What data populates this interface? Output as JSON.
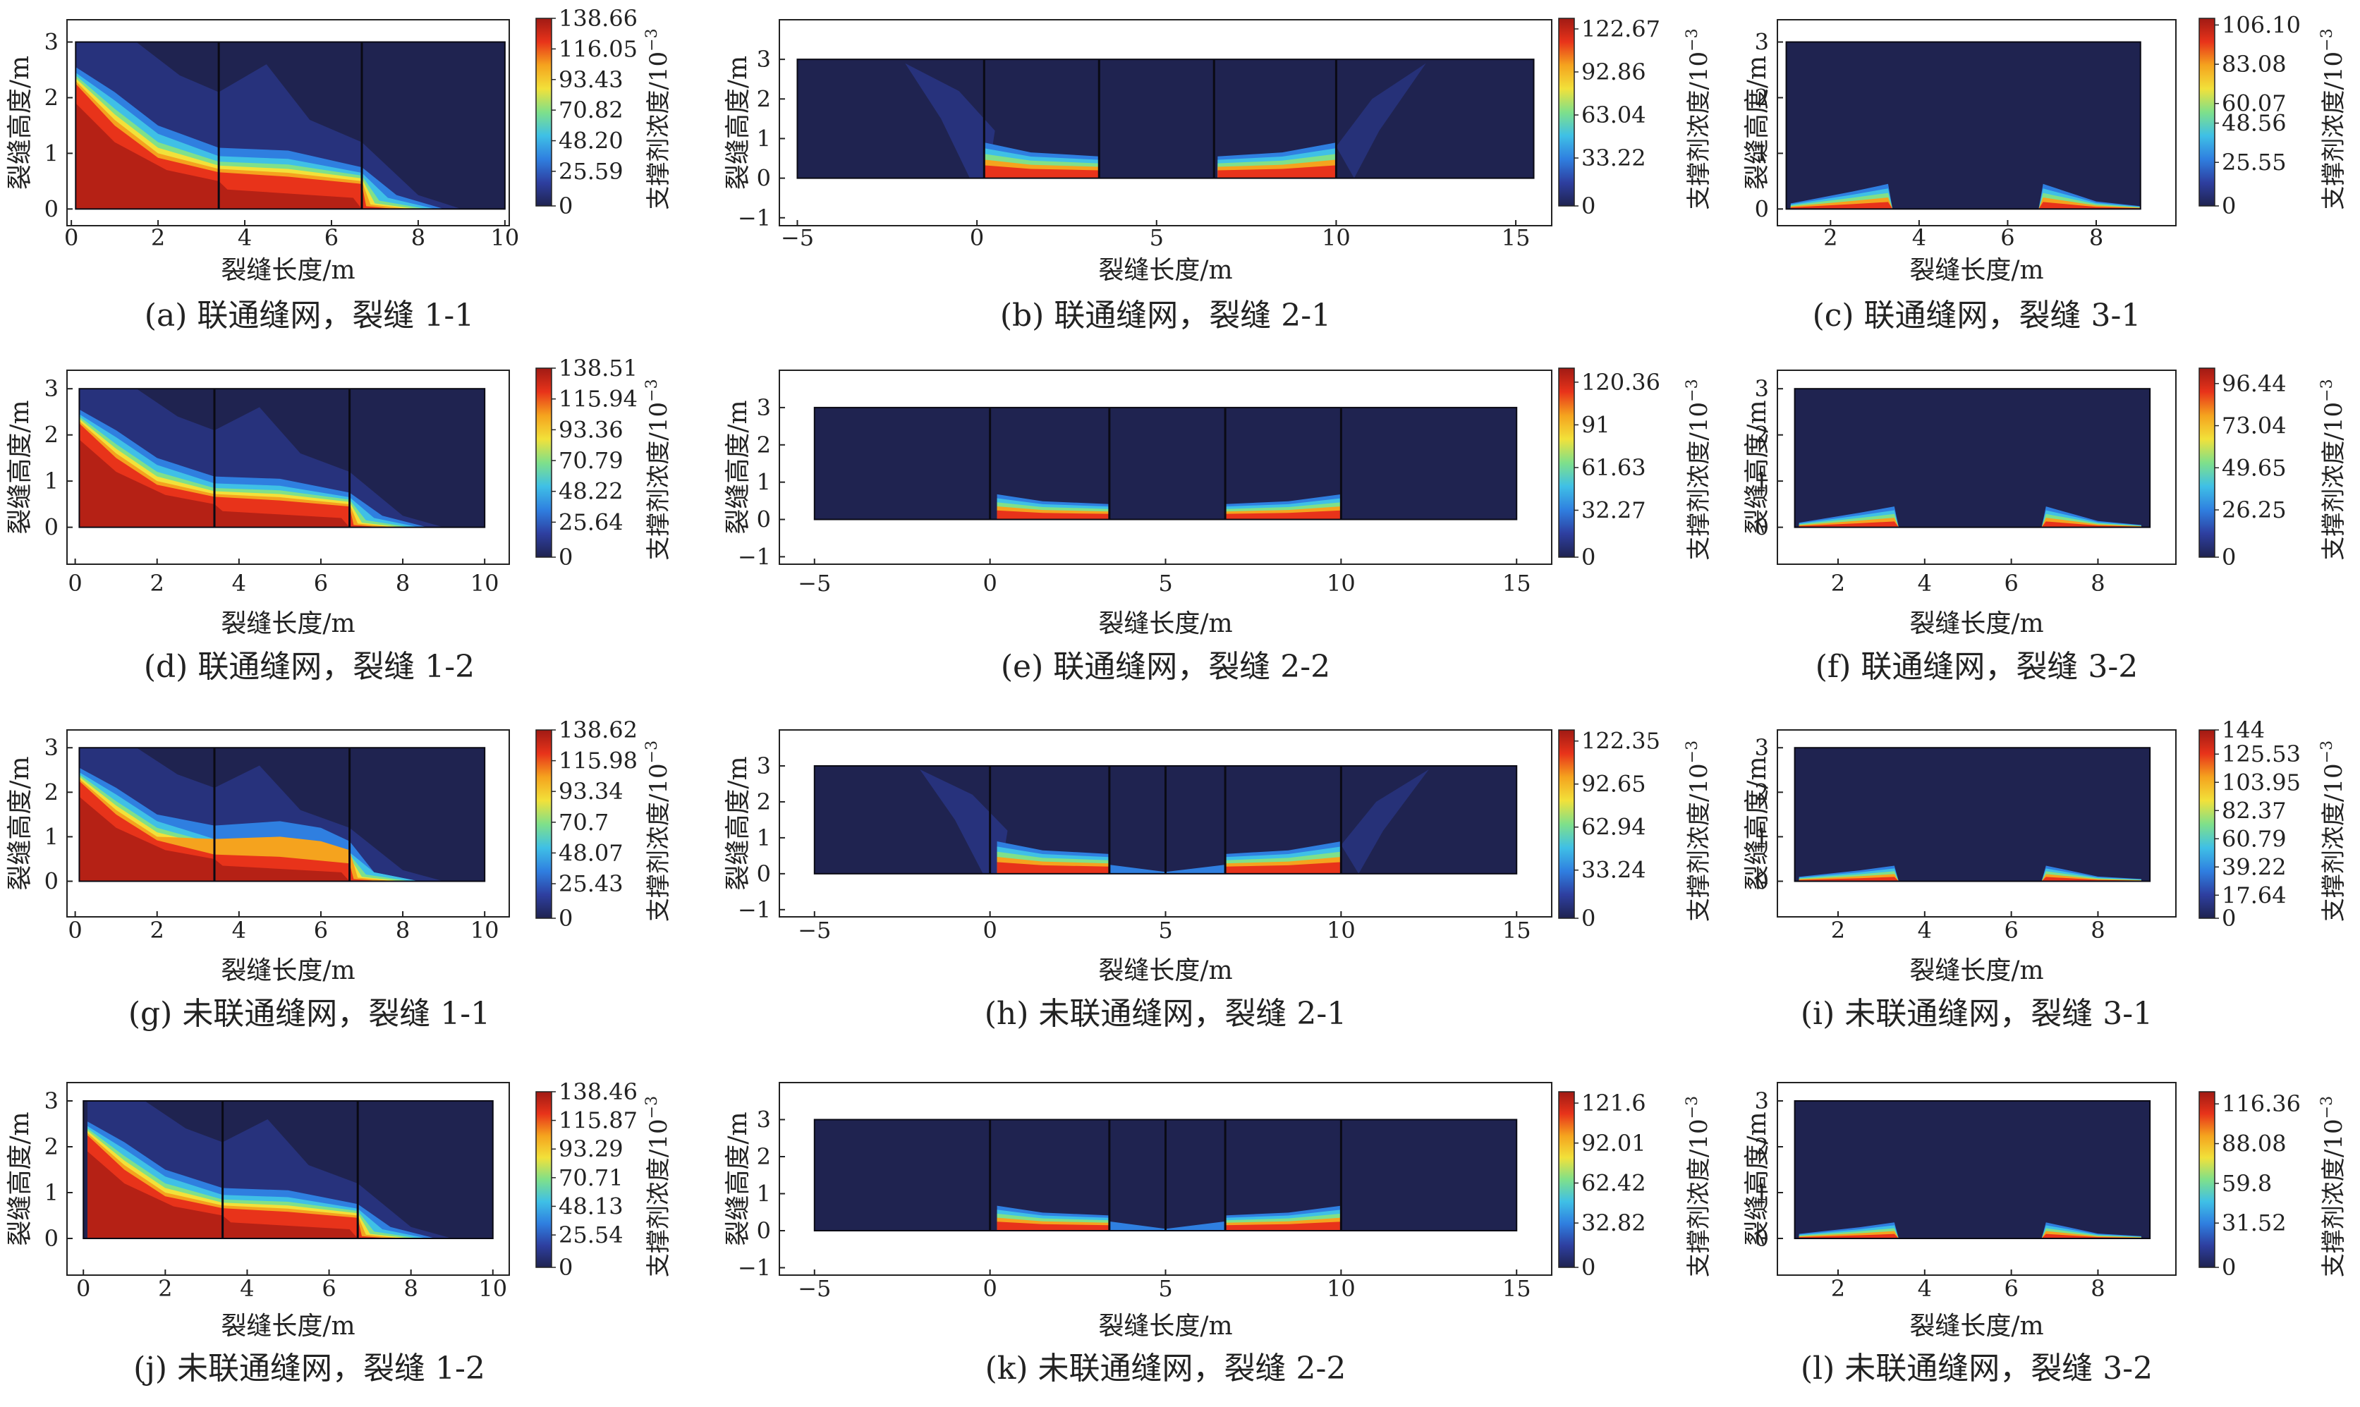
{
  "figure": {
    "xlabel": "裂缝长度/m",
    "ylabel": "裂缝高度/m",
    "colorbar_label": "支撑剂浓度/10",
    "colorbar_exp": "−3",
    "colors": {
      "background": "#1f2350",
      "colormap": [
        "#1f2350",
        "#2e3fa0",
        "#2f7fe0",
        "#3fc0e6",
        "#7fe08a",
        "#f2e13a",
        "#f5a31e",
        "#e8331a",
        "#a01a14"
      ]
    }
  },
  "chart_data": [
    {
      "id": "a",
      "type": "heatmap",
      "caption": "(a) 联通缝网，裂缝 1-1",
      "x_ticks": [
        "0",
        "2",
        "4",
        "6",
        "8",
        "10"
      ],
      "y_ticks": [
        "0",
        "1",
        "2",
        "3"
      ],
      "xlim": [
        -0.1,
        10.1
      ],
      "ylim": [
        -0.3,
        3.4
      ],
      "frame_xlim": [
        0.1,
        10
      ],
      "frame_ylim": [
        0,
        3
      ],
      "dividers": [
        3.4,
        6.7
      ],
      "colorbar_ticks": [
        "138.66",
        "116.05",
        "93.43",
        "70.82",
        "48.20",
        "25.59",
        "0"
      ],
      "colorbar_max": 138.66
    },
    {
      "id": "b",
      "type": "heatmap",
      "caption": "(b) 联通缝网，裂缝 2-1",
      "x_ticks": [
        "−5",
        "0",
        "5",
        "10",
        "15"
      ],
      "y_ticks": [
        "−1",
        "0",
        "1",
        "2",
        "3"
      ],
      "xlim": [
        -5.5,
        16
      ],
      "ylim": [
        -1.2,
        4
      ],
      "frame_xlim": [
        -5,
        15.5
      ],
      "frame_ylim": [
        0,
        3
      ],
      "dividers": [
        0.2,
        3.4,
        6.6,
        10
      ],
      "colorbar_ticks": [
        "122.67",
        "92.86",
        "63.04",
        "33.22",
        "0"
      ],
      "colorbar_max": 130
    },
    {
      "id": "c",
      "type": "heatmap",
      "caption": "(c) 联通缝网，裂缝 3-1",
      "x_ticks": [
        "2",
        "4",
        "6",
        "8"
      ],
      "y_ticks": [
        "0",
        "1",
        "2",
        "3"
      ],
      "xlim": [
        0.8,
        9.8
      ],
      "ylim": [
        -0.3,
        3.4
      ],
      "frame_xlim": [
        1,
        9
      ],
      "frame_ylim": [
        0,
        3
      ],
      "dividers": [],
      "colorbar_ticks": [
        "106.10",
        "83.08",
        "60.07",
        "48.56",
        "25.55",
        "0"
      ],
      "colorbar_max": 110
    },
    {
      "id": "d",
      "type": "heatmap",
      "caption": "(d) 联通缝网，裂缝 1-2",
      "x_ticks": [
        "0",
        "2",
        "4",
        "6",
        "8",
        "10"
      ],
      "y_ticks": [
        "0",
        "1",
        "2",
        "3"
      ],
      "xlim": [
        -0.2,
        10.6
      ],
      "ylim": [
        -0.8,
        3.4
      ],
      "frame_xlim": [
        0.1,
        10
      ],
      "frame_ylim": [
        0,
        3
      ],
      "dividers": [
        3.4,
        6.7
      ],
      "colorbar_ticks": [
        "138.51",
        "115.94",
        "93.36",
        "70.79",
        "48.22",
        "25.64",
        "0"
      ],
      "colorbar_max": 138.51
    },
    {
      "id": "e",
      "type": "heatmap",
      "caption": "(e) 联通缝网，裂缝 2-2",
      "x_ticks": [
        "−5",
        "0",
        "5",
        "10",
        "15"
      ],
      "y_ticks": [
        "−1",
        "0",
        "1",
        "2",
        "3"
      ],
      "xlim": [
        -6,
        16
      ],
      "ylim": [
        -1.2,
        4
      ],
      "frame_xlim": [
        -5,
        15
      ],
      "frame_ylim": [
        0,
        3
      ],
      "dividers": [
        0,
        3.4,
        6.7,
        10
      ],
      "colorbar_ticks": [
        "120.36",
        "91",
        "61.63",
        "32.27",
        "0"
      ],
      "colorbar_max": 130
    },
    {
      "id": "f",
      "type": "heatmap",
      "caption": "(f) 联通缝网，裂缝 3-2",
      "x_ticks": [
        "2",
        "4",
        "6",
        "8"
      ],
      "y_ticks": [
        "0",
        "1",
        "2",
        "3"
      ],
      "xlim": [
        0.6,
        9.8
      ],
      "ylim": [
        -0.8,
        3.4
      ],
      "frame_xlim": [
        1,
        9.2
      ],
      "frame_ylim": [
        0,
        3
      ],
      "dividers": [],
      "colorbar_ticks": [
        "96.44",
        "73.04",
        "49.65",
        "26.25",
        "0"
      ],
      "colorbar_max": 105
    },
    {
      "id": "g",
      "type": "heatmap",
      "caption": "(g) 未联通缝网，裂缝 1-1",
      "x_ticks": [
        "0",
        "2",
        "4",
        "6",
        "8",
        "10"
      ],
      "y_ticks": [
        "0",
        "1",
        "2",
        "3"
      ],
      "xlim": [
        -0.2,
        10.6
      ],
      "ylim": [
        -0.8,
        3.4
      ],
      "frame_xlim": [
        0.1,
        10
      ],
      "frame_ylim": [
        0,
        3
      ],
      "dividers": [
        3.4,
        6.7
      ],
      "colorbar_ticks": [
        "138.62",
        "115.98",
        "93.34",
        "70.7",
        "48.07",
        "25.43",
        "0"
      ],
      "colorbar_max": 138.62
    },
    {
      "id": "h",
      "type": "heatmap",
      "caption": "(h) 未联通缝网，裂缝 2-1",
      "x_ticks": [
        "−5",
        "0",
        "5",
        "10",
        "15"
      ],
      "y_ticks": [
        "−1",
        "0",
        "1",
        "2",
        "3"
      ],
      "xlim": [
        -6,
        16
      ],
      "ylim": [
        -1.2,
        4
      ],
      "frame_xlim": [
        -5,
        15
      ],
      "frame_ylim": [
        0,
        3
      ],
      "dividers": [
        0,
        3.4,
        5,
        6.7,
        10
      ],
      "colorbar_ticks": [
        "122.35",
        "92.65",
        "62.94",
        "33.24",
        "0"
      ],
      "colorbar_max": 130
    },
    {
      "id": "i",
      "type": "heatmap",
      "caption": "(i) 未联通缝网，裂缝 3-1",
      "x_ticks": [
        "2",
        "4",
        "6",
        "8"
      ],
      "y_ticks": [
        "0",
        "1",
        "2",
        "3"
      ],
      "xlim": [
        0.6,
        9.8
      ],
      "ylim": [
        -0.8,
        3.4
      ],
      "frame_xlim": [
        1,
        9.2
      ],
      "frame_ylim": [
        0,
        3
      ],
      "dividers": [],
      "colorbar_ticks": [
        "144",
        "125.53",
        "103.95",
        "82.37",
        "60.79",
        "39.22",
        "17.64",
        "0"
      ],
      "colorbar_max": 144
    },
    {
      "id": "j",
      "type": "heatmap",
      "caption": "(j) 未联通缝网，裂缝 1-2",
      "x_ticks": [
        "0",
        "2",
        "4",
        "6",
        "8",
        "10"
      ],
      "y_ticks": [
        "0",
        "1",
        "2",
        "3"
      ],
      "xlim": [
        -0.4,
        10.4
      ],
      "ylim": [
        -0.8,
        3.4
      ],
      "frame_xlim": [
        0,
        10
      ],
      "frame_ylim": [
        0,
        3
      ],
      "dividers": [
        3.4,
        6.7
      ],
      "colorbar_ticks": [
        "138.46",
        "115.87",
        "93.29",
        "70.71",
        "48.13",
        "25.54",
        "0"
      ],
      "colorbar_max": 138.46
    },
    {
      "id": "k",
      "type": "heatmap",
      "caption": "(k) 未联通缝网，裂缝 2-2",
      "x_ticks": [
        "−5",
        "0",
        "5",
        "10",
        "15"
      ],
      "y_ticks": [
        "−1",
        "0",
        "1",
        "2",
        "3"
      ],
      "xlim": [
        -6,
        16
      ],
      "ylim": [
        -1.2,
        4
      ],
      "frame_xlim": [
        -5,
        15
      ],
      "frame_ylim": [
        0,
        3
      ],
      "dividers": [
        0,
        3.4,
        5,
        6.7,
        10
      ],
      "colorbar_ticks": [
        "121.6",
        "92.01",
        "62.42",
        "32.82",
        "0"
      ],
      "colorbar_max": 130
    },
    {
      "id": "l",
      "type": "heatmap",
      "caption": "(l) 未联通缝网，裂缝 3-2",
      "x_ticks": [
        "2",
        "4",
        "6",
        "8"
      ],
      "y_ticks": [
        "0",
        "1",
        "2",
        "3"
      ],
      "xlim": [
        0.6,
        9.8
      ],
      "ylim": [
        -0.8,
        3.4
      ],
      "frame_xlim": [
        1,
        9.2
      ],
      "frame_ylim": [
        0,
        3
      ],
      "dividers": [],
      "colorbar_ticks": [
        "116.36",
        "88.08",
        "59.8",
        "31.52",
        "0"
      ],
      "colorbar_max": 125
    }
  ]
}
